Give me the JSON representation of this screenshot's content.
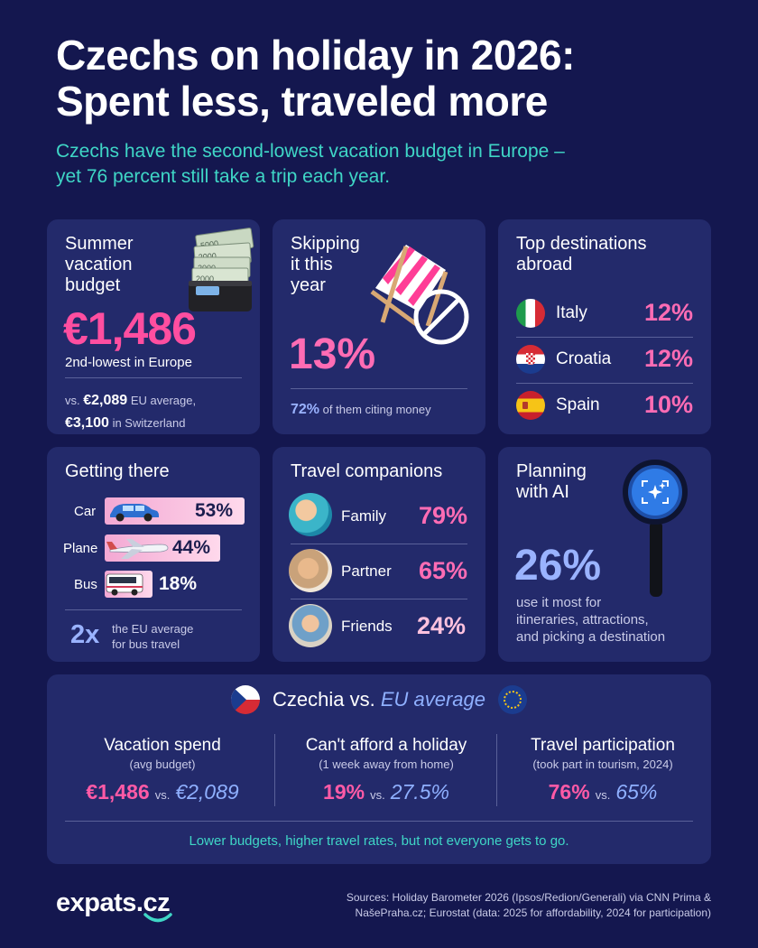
{
  "header": {
    "title_line1": "Czechs on holiday in 2026:",
    "title_line2": "Spent less, traveled more",
    "subtitle_line1": "Czechs have the second-lowest vacation budget in Europe –",
    "subtitle_line2": "yet 76 percent still take a trip each year."
  },
  "budget_card": {
    "title_l1": "Summer",
    "title_l2": "vacation",
    "title_l3": "budget",
    "amount": "€1,486",
    "rank": "2nd-lowest in Europe",
    "vs_prefix": "vs.",
    "eu_value": "€2,089",
    "eu_label": "EU average,",
    "ch_value": "€3,100",
    "ch_label": "in Switzerland",
    "notes": [
      "5000",
      "2000",
      "2000",
      "2000"
    ]
  },
  "skip_card": {
    "title_l1": "Skipping",
    "title_l2": "it this",
    "title_l3": "year",
    "percent": "13%",
    "money_pct": "72%",
    "money_text": "of them citing money"
  },
  "destinations_card": {
    "title_l1": "Top destinations",
    "title_l2": "abroad",
    "items": [
      {
        "name": "Italy",
        "pct": "12%"
      },
      {
        "name": "Croatia",
        "pct": "12%"
      },
      {
        "name": "Spain",
        "pct": "10%"
      }
    ]
  },
  "transport_card": {
    "title": "Getting there",
    "items": [
      {
        "label": "Car",
        "value": "53%",
        "share": 53
      },
      {
        "label": "Plane",
        "value": "44%",
        "share": 44
      },
      {
        "label": "Bus",
        "value": "18%",
        "share": 18
      }
    ],
    "multiplier": "2x",
    "multiplier_text_l1": "the EU average",
    "multiplier_text_l2": "for bus travel"
  },
  "companions_card": {
    "title": "Travel companions",
    "items": [
      {
        "name": "Family",
        "pct": "79%"
      },
      {
        "name": "Partner",
        "pct": "65%"
      },
      {
        "name": "Friends",
        "pct": "24%"
      }
    ]
  },
  "ai_card": {
    "title_l1": "Planning",
    "title_l2": "with AI",
    "percent": "26%",
    "text_l1": "use it most for",
    "text_l2": "itineraries, attractions,",
    "text_l3": "and picking a destination"
  },
  "comparison": {
    "title_a": "Czechia vs.",
    "title_b": "EU average",
    "columns": [
      {
        "head": "Vacation spend",
        "sub": "(avg budget)",
        "cz": "€1,486",
        "vs": "vs.",
        "eu": "€2,089"
      },
      {
        "head": "Can't afford a holiday",
        "sub": "(1 week away from home)",
        "cz": "19%",
        "vs": "vs.",
        "eu": "27.5%"
      },
      {
        "head": "Travel participation",
        "sub": "(took part in tourism, 2024)",
        "cz": "76%",
        "vs": "vs.",
        "eu": "65%"
      }
    ],
    "footer": "Lower budgets, higher travel rates, but not everyone gets to go."
  },
  "footer": {
    "logo": "expats.cz",
    "source_l1": "Sources: Holiday Barometer 2026 (Ipsos/Redion/Generali) via CNN Prima &",
    "source_l2": "NašePraha.cz; Eurostat (data: 2025 for affordability, 2024 for participation)"
  },
  "colors": {
    "background": "#14174f",
    "card": "#232a6b",
    "accent_pink": "#ff4ea0",
    "accent_teal": "#3fd6c6",
    "accent_lavender": "#9ab3ff"
  }
}
